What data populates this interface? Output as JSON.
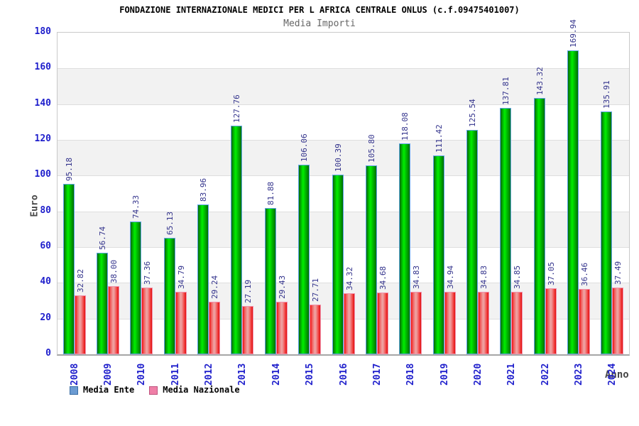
{
  "chart_data": {
    "type": "bar",
    "title": "FONDAZIONE INTERNAZIONALE MEDICI PER L AFRICA CENTRALE ONLUS (c.f.09475401007)",
    "subtitle": "Media Importi",
    "xlabel": "Anno",
    "ylabel": "Euro",
    "ylim": [
      0,
      180
    ],
    "ytick_step": 20,
    "grid": "horizontal-bands-alternating",
    "legend_position": "bottom-left",
    "categories": [
      "2008",
      "2009",
      "2010",
      "2011",
      "2012",
      "2013",
      "2014",
      "2015",
      "2016",
      "2017",
      "2018",
      "2019",
      "2020",
      "2021",
      "2022",
      "2023",
      "2024"
    ],
    "series": [
      {
        "name": "Media Ente",
        "bar_color": "#00dd00",
        "legend_swatch_color": "#6b9bd2",
        "values": [
          95.18,
          56.74,
          74.33,
          65.13,
          83.96,
          127.76,
          81.88,
          106.06,
          100.39,
          105.8,
          118.08,
          111.42,
          125.54,
          137.81,
          143.32,
          169.94,
          135.91
        ]
      },
      {
        "name": "Media Nazionale",
        "bar_color": "#ee2222",
        "legend_swatch_color": "#ef7fa7",
        "values": [
          32.82,
          38.0,
          37.36,
          34.79,
          29.24,
          27.19,
          29.43,
          27.71,
          34.32,
          34.68,
          34.83,
          34.94,
          34.83,
          34.85,
          37.05,
          36.46,
          37.49
        ]
      }
    ]
  },
  "colors": {
    "tick_label": "#2020cc",
    "value_label": "#33338c",
    "axis_title": "#474747",
    "title": "#000000",
    "subtitle": "#666666",
    "band_fill": "#f2f2f2",
    "gridline": "#dedede"
  }
}
